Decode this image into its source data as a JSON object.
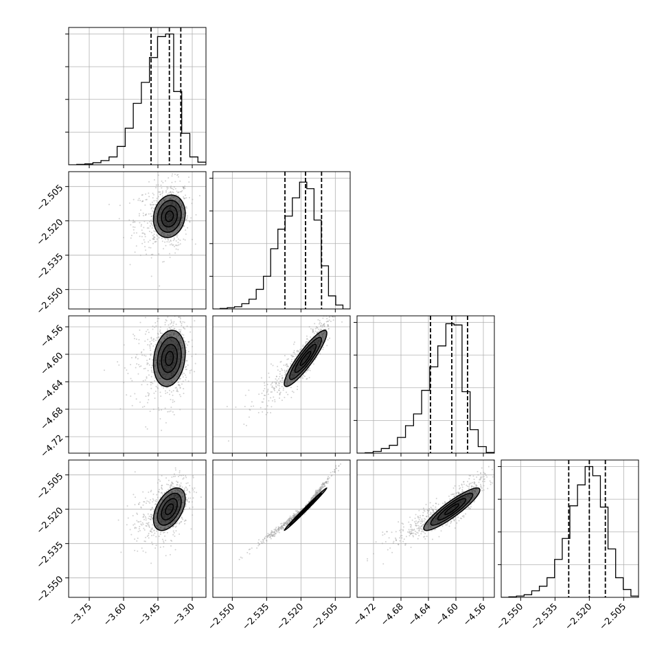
{
  "chart_data": {
    "type": "corner",
    "n_params": 4,
    "grid": true,
    "labels": [],
    "parameters": [
      {
        "range": [
          -3.84,
          -3.24
        ],
        "ticks": [
          "−3.75",
          "−3.60",
          "−3.45",
          "−3.30"
        ],
        "tick_values": [
          -3.75,
          -3.6,
          -3.45,
          -3.3
        ]
      },
      {
        "range": [
          -2.5585,
          -2.4985
        ],
        "ticks": [
          "−2.550",
          "−2.535",
          "−2.520",
          "−2.505"
        ],
        "tick_values": [
          -2.55,
          -2.535,
          -2.52,
          -2.505
        ]
      },
      {
        "range": [
          -4.744,
          -4.544
        ],
        "ticks": [
          "−4.72",
          "−4.68",
          "−4.64",
          "−4.60",
          "−4.56"
        ],
        "tick_values": [
          -4.72,
          -4.68,
          -4.64,
          -4.6,
          -4.56
        ]
      },
      {
        "range": [
          -2.5585,
          -2.4985
        ],
        "ticks": [
          "−2.550",
          "−2.535",
          "−2.520",
          "−2.505"
        ],
        "tick_values": [
          -2.55,
          -2.535,
          -2.52,
          -2.505
        ]
      }
    ],
    "quantiles": [
      [
        -3.48,
        -3.4,
        -3.35
      ],
      [
        -2.527,
        -2.518,
        -2.511
      ],
      [
        -4.637,
        -4.606,
        -4.583
      ],
      [
        -2.529,
        -2.52,
        -2.513
      ]
    ],
    "histograms": [
      [
        0,
        0.003,
        0.007,
        0.016,
        0.032,
        0.06,
        0.14,
        0.28,
        0.47,
        0.63,
        0.82,
        0.98,
        1.0,
        0.56,
        0.24,
        0.06,
        0.02
      ],
      [
        0,
        0.004,
        0.01,
        0.017,
        0.04,
        0.075,
        0.15,
        0.25,
        0.46,
        0.61,
        0.71,
        0.85,
        0.97,
        0.92,
        0.68,
        0.33,
        0.1,
        0.03,
        0
      ],
      [
        0,
        0.003,
        0.013,
        0.035,
        0.06,
        0.12,
        0.21,
        0.3,
        0.48,
        0.66,
        0.82,
        0.99,
        0.98,
        0.47,
        0.18,
        0.05,
        0.005
      ],
      [
        0,
        0.004,
        0.01,
        0.02,
        0.05,
        0.085,
        0.15,
        0.29,
        0.45,
        0.7,
        0.86,
        1.0,
        0.93,
        0.69,
        0.37,
        0.15,
        0.06,
        0.01
      ]
    ],
    "correlations": [
      [
        0,
        1,
        0.13
      ],
      [
        0,
        2,
        0.18
      ],
      [
        0,
        3,
        0.48
      ],
      [
        1,
        2,
        0.9
      ],
      [
        1,
        3,
        0.995
      ],
      [
        2,
        3,
        0.9
      ]
    ],
    "spreads": [
      0.056,
      0.0075,
      0.033,
      0.0075
    ],
    "contour_levels": [
      0.5,
      1.0,
      1.5,
      2.0
    ],
    "colors": {
      "line": "#000000",
      "grid": "#b0b0b0",
      "points": "#9a9a9a"
    }
  }
}
